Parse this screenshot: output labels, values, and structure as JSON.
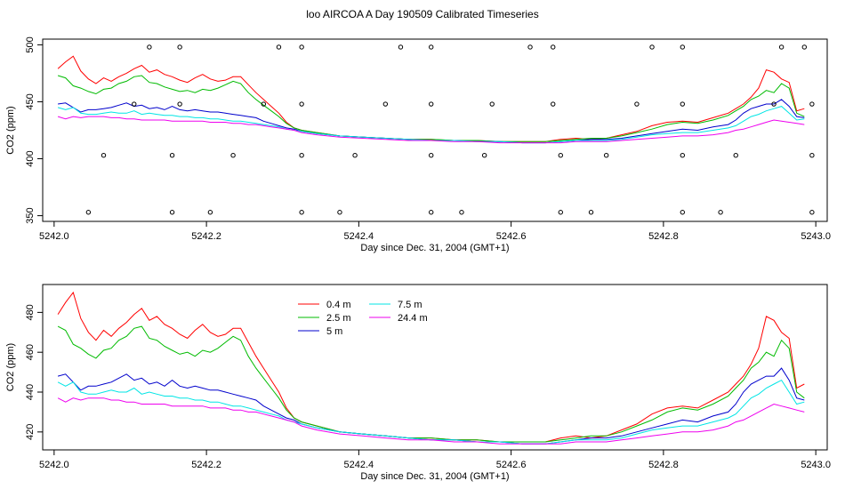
{
  "title": "loo AIRCOA A  Day 190509  Calibrated Timeseries",
  "colors": {
    "0.4 m": "#ff0000",
    "2.5 m": "#00bb00",
    "5 m": "#0000cc",
    "7.5 m": "#00e5e5",
    "24.4 m": "#ee00ee"
  },
  "chart_data": [
    {
      "type": "scatter",
      "title": "",
      "xlabel": "Day since Dec. 31, 2004 (GMT+1)",
      "ylabel": "CO2 (ppm)",
      "xlim": [
        5241.985,
        5243.015
      ],
      "ylim": [
        345,
        505
      ],
      "xticks": [
        "5242.0",
        "5242.2",
        "5242.4",
        "5242.6",
        "5242.8",
        "5243.0"
      ],
      "yticks": [
        "350",
        "400",
        "450",
        "500"
      ],
      "lines": {
        "x": [
          5242.005,
          5242.015,
          5242.025,
          5242.035,
          5242.045,
          5242.055,
          5242.065,
          5242.075,
          5242.085,
          5242.095,
          5242.105,
          5242.115,
          5242.125,
          5242.135,
          5242.145,
          5242.155,
          5242.165,
          5242.175,
          5242.185,
          5242.195,
          5242.205,
          5242.215,
          5242.225,
          5242.235,
          5242.245,
          5242.255,
          5242.265,
          5242.275,
          5242.285,
          5242.295,
          5242.305,
          5242.315,
          5242.325,
          5242.345,
          5242.375,
          5242.405,
          5242.435,
          5242.465,
          5242.495,
          5242.525,
          5242.555,
          5242.585,
          5242.615,
          5242.645,
          5242.665,
          5242.685,
          5242.705,
          5242.725,
          5242.745,
          5242.765,
          5242.785,
          5242.805,
          5242.825,
          5242.845,
          5242.865,
          5242.885,
          5242.895,
          5242.905,
          5242.915,
          5242.925,
          5242.935,
          5242.945,
          5242.955,
          5242.965,
          5242.975,
          5242.985
        ],
        "series": [
          {
            "name": "0.4 m",
            "values": [
              479,
              485,
              490,
              477,
              470,
              466,
              471,
              468,
              472,
              475,
              479,
              482,
              476,
              478,
              474,
              472,
              469,
              467,
              471,
              474,
              470,
              468,
              469,
              472,
              472,
              465,
              458,
              452,
              446,
              440,
              432,
              427,
              425,
              423,
              420,
              419,
              418,
              417,
              417,
              416,
              416,
              415,
              415,
              415,
              417,
              418,
              417,
              418,
              421,
              424,
              429,
              432,
              433,
              432,
              436,
              440,
              444,
              448,
              454,
              462,
              478,
              476,
              470,
              467,
              442,
              444
            ]
          },
          {
            "name": "2.5 m",
            "values": [
              473,
              471,
              464,
              462,
              459,
              457,
              461,
              462,
              466,
              468,
              472,
              473,
              467,
              466,
              463,
              461,
              459,
              460,
              458,
              461,
              460,
              462,
              465,
              468,
              466,
              458,
              452,
              447,
              442,
              437,
              431,
              427,
              425,
              423,
              420,
              419,
              418,
              417,
              417,
              416,
              416,
              415,
              415,
              415,
              416,
              417,
              418,
              418,
              420,
              423,
              426,
              430,
              432,
              431,
              434,
              438,
              442,
              446,
              452,
              455,
              460,
              458,
              466,
              462,
              440,
              437
            ]
          },
          {
            "name": "5 m",
            "values": [
              448,
              449,
              445,
              441,
              443,
              443,
              444,
              445,
              447,
              449,
              446,
              447,
              444,
              445,
              443,
              446,
              443,
              442,
              443,
              442,
              441,
              441,
              440,
              439,
              438,
              437,
              436,
              433,
              431,
              429,
              427,
              426,
              424,
              422,
              420,
              419,
              418,
              417,
              416,
              416,
              415,
              415,
              414,
              414,
              415,
              416,
              417,
              417,
              418,
              420,
              422,
              424,
              426,
              425,
              428,
              430,
              434,
              440,
              444,
              446,
              448,
              448,
              452,
              446,
              437,
              436
            ]
          },
          {
            "name": "7.5 m",
            "values": [
              445,
              443,
              445,
              440,
              439,
              439,
              440,
              441,
              440,
              440,
              442,
              439,
              440,
              439,
              438,
              438,
              437,
              437,
              436,
              436,
              435,
              435,
              434,
              433,
              433,
              432,
              431,
              430,
              429,
              428,
              426,
              425,
              424,
              422,
              420,
              419,
              418,
              417,
              416,
              416,
              415,
              415,
              414,
              414,
              415,
              416,
              416,
              416,
              417,
              419,
              421,
              422,
              423,
              423,
              425,
              427,
              429,
              433,
              437,
              439,
              442,
              444,
              446,
              440,
              434,
              435
            ]
          },
          {
            "name": "24.4 m",
            "values": [
              437,
              435,
              437,
              436,
              437,
              437,
              437,
              436,
              436,
              435,
              435,
              434,
              434,
              434,
              434,
              433,
              433,
              433,
              433,
              433,
              432,
              432,
              432,
              431,
              431,
              430,
              430,
              429,
              428,
              427,
              426,
              425,
              423,
              421,
              419,
              418,
              417,
              416,
              416,
              415,
              415,
              414,
              414,
              414,
              414,
              415,
              415,
              415,
              416,
              417,
              418,
              419,
              420,
              420,
              421,
              423,
              425,
              426,
              428,
              430,
              432,
              434,
              433,
              432,
              431,
              430
            ]
          }
        ]
      },
      "markers": {
        "x": [
          5242.125,
          5242.165,
          5242.295,
          5242.325,
          5242.455,
          5242.495,
          5242.625,
          5242.655,
          5242.785,
          5242.825,
          5242.955,
          5242.985,
          5242.105,
          5242.165,
          5242.275,
          5242.325,
          5242.435,
          5242.495,
          5242.575,
          5242.655,
          5242.765,
          5242.825,
          5242.945,
          5242.995,
          5242.065,
          5242.155,
          5242.235,
          5242.325,
          5242.395,
          5242.495,
          5242.565,
          5242.665,
          5242.725,
          5242.825,
          5242.895,
          5242.995,
          5242.045,
          5242.155,
          5242.205,
          5242.325,
          5242.375,
          5242.495,
          5242.535,
          5242.665,
          5242.705,
          5242.825,
          5242.875,
          5242.995
        ],
        "y": [
          498,
          498,
          498,
          498,
          498,
          498,
          498,
          498,
          498,
          498,
          498,
          498,
          448,
          448,
          448,
          448,
          448,
          448,
          448,
          448,
          448,
          448,
          448,
          448,
          403,
          403,
          403,
          403,
          403,
          403,
          403,
          403,
          403,
          403,
          403,
          403,
          353,
          353,
          353,
          353,
          353,
          353,
          353,
          353,
          353,
          353,
          353,
          353
        ]
      }
    },
    {
      "type": "line",
      "title": "",
      "xlabel": "Day since Dec. 31, 2004 (GMT+1)",
      "ylabel": "CO2 (ppm)",
      "xlim": [
        5241.985,
        5243.015
      ],
      "ylim": [
        411,
        494
      ],
      "xticks": [
        "5242.0",
        "5242.2",
        "5242.4",
        "5242.6",
        "5242.8",
        "5243.0"
      ],
      "yticks": [
        "420",
        "440",
        "460",
        "480"
      ],
      "legend": [
        "0.4 m",
        "2.5 m",
        "5 m",
        "7.5 m",
        "24.4 m"
      ],
      "legend_position": "top-center",
      "x": [
        5242.005,
        5242.015,
        5242.025,
        5242.035,
        5242.045,
        5242.055,
        5242.065,
        5242.075,
        5242.085,
        5242.095,
        5242.105,
        5242.115,
        5242.125,
        5242.135,
        5242.145,
        5242.155,
        5242.165,
        5242.175,
        5242.185,
        5242.195,
        5242.205,
        5242.215,
        5242.225,
        5242.235,
        5242.245,
        5242.255,
        5242.265,
        5242.275,
        5242.285,
        5242.295,
        5242.305,
        5242.315,
        5242.325,
        5242.345,
        5242.375,
        5242.405,
        5242.435,
        5242.465,
        5242.495,
        5242.525,
        5242.555,
        5242.585,
        5242.615,
        5242.645,
        5242.665,
        5242.685,
        5242.705,
        5242.725,
        5242.745,
        5242.765,
        5242.785,
        5242.805,
        5242.825,
        5242.845,
        5242.865,
        5242.885,
        5242.895,
        5242.905,
        5242.915,
        5242.925,
        5242.935,
        5242.945,
        5242.955,
        5242.965,
        5242.975,
        5242.985
      ],
      "series": [
        {
          "name": "0.4 m",
          "values": [
            479,
            485,
            490,
            477,
            470,
            466,
            471,
            468,
            472,
            475,
            479,
            482,
            476,
            478,
            474,
            472,
            469,
            467,
            471,
            474,
            470,
            468,
            469,
            472,
            472,
            465,
            458,
            452,
            446,
            440,
            432,
            427,
            425,
            423,
            420,
            419,
            418,
            417,
            417,
            416,
            416,
            415,
            415,
            415,
            417,
            418,
            417,
            418,
            421,
            424,
            429,
            432,
            433,
            432,
            436,
            440,
            444,
            448,
            454,
            462,
            478,
            476,
            470,
            467,
            442,
            444
          ]
        },
        {
          "name": "2.5 m",
          "values": [
            473,
            471,
            464,
            462,
            459,
            457,
            461,
            462,
            466,
            468,
            472,
            473,
            467,
            466,
            463,
            461,
            459,
            460,
            458,
            461,
            460,
            462,
            465,
            468,
            466,
            458,
            452,
            447,
            442,
            437,
            431,
            427,
            425,
            423,
            420,
            419,
            418,
            417,
            417,
            416,
            416,
            415,
            415,
            415,
            416,
            417,
            418,
            418,
            420,
            423,
            426,
            430,
            432,
            431,
            434,
            438,
            442,
            446,
            452,
            455,
            460,
            458,
            466,
            462,
            440,
            437
          ]
        },
        {
          "name": "5 m",
          "values": [
            448,
            449,
            445,
            441,
            443,
            443,
            444,
            445,
            447,
            449,
            446,
            447,
            444,
            445,
            443,
            446,
            443,
            442,
            443,
            442,
            441,
            441,
            440,
            439,
            438,
            437,
            436,
            433,
            431,
            429,
            427,
            426,
            424,
            422,
            420,
            419,
            418,
            417,
            416,
            416,
            415,
            415,
            414,
            414,
            415,
            416,
            417,
            417,
            418,
            420,
            422,
            424,
            426,
            425,
            428,
            430,
            434,
            440,
            444,
            446,
            448,
            448,
            452,
            446,
            437,
            436
          ]
        },
        {
          "name": "7.5 m",
          "values": [
            445,
            443,
            445,
            440,
            439,
            439,
            440,
            441,
            440,
            440,
            442,
            439,
            440,
            439,
            438,
            438,
            437,
            437,
            436,
            436,
            435,
            435,
            434,
            433,
            433,
            432,
            431,
            430,
            429,
            428,
            426,
            425,
            424,
            422,
            420,
            419,
            418,
            417,
            416,
            416,
            415,
            415,
            414,
            414,
            415,
            416,
            416,
            416,
            417,
            419,
            421,
            422,
            423,
            423,
            425,
            427,
            429,
            433,
            437,
            439,
            442,
            444,
            446,
            440,
            434,
            435
          ]
        },
        {
          "name": "24.4 m",
          "values": [
            437,
            435,
            437,
            436,
            437,
            437,
            437,
            436,
            436,
            435,
            435,
            434,
            434,
            434,
            434,
            433,
            433,
            433,
            433,
            433,
            432,
            432,
            432,
            431,
            431,
            430,
            430,
            429,
            428,
            427,
            426,
            425,
            423,
            421,
            419,
            418,
            417,
            416,
            416,
            415,
            415,
            414,
            414,
            414,
            414,
            415,
            415,
            415,
            416,
            417,
            418,
            419,
            420,
            420,
            421,
            423,
            425,
            426,
            428,
            430,
            432,
            434,
            433,
            432,
            431,
            430
          ]
        }
      ]
    }
  ]
}
